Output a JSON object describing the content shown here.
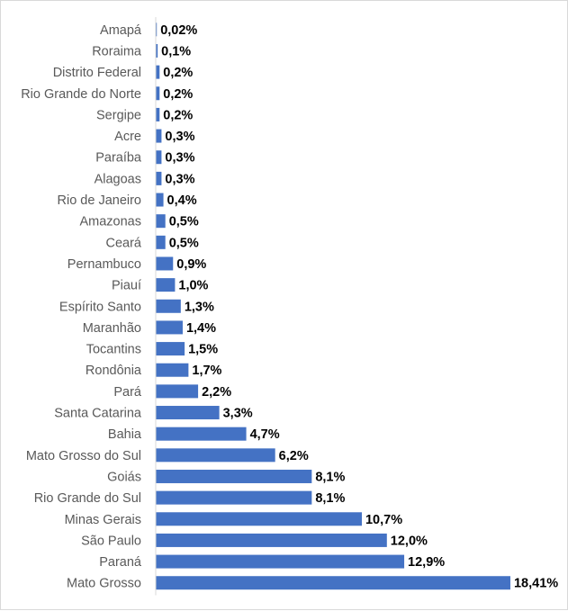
{
  "chart_data": {
    "type": "bar",
    "orientation": "horizontal",
    "title": "",
    "xlabel": "",
    "ylabel": "",
    "grid": false,
    "legend": "none",
    "bar_color": "#4472c4",
    "xlim": [
      0,
      20
    ],
    "categories": [
      "Amapá",
      "Roraima",
      "Distrito Federal",
      "Rio Grande do Norte",
      "Sergipe",
      "Acre",
      "Paraíba",
      "Alagoas",
      "Rio de Janeiro",
      "Amazonas",
      "Ceará",
      "Pernambuco",
      "Piauí",
      "Espírito Santo",
      "Maranhão",
      "Tocantins",
      "Rondônia",
      "Pará",
      "Santa Catarina",
      "Bahia",
      "Mato Grosso do Sul",
      "Goiás",
      "Rio Grande do Sul",
      "Minas Gerais",
      "São Paulo",
      "Paraná",
      "Mato Grosso"
    ],
    "values": [
      0.02,
      0.1,
      0.2,
      0.2,
      0.2,
      0.3,
      0.3,
      0.3,
      0.4,
      0.5,
      0.5,
      0.9,
      1.0,
      1.3,
      1.4,
      1.5,
      1.7,
      2.2,
      3.3,
      4.7,
      6.2,
      8.1,
      8.1,
      10.7,
      12.0,
      12.9,
      18.41
    ],
    "value_labels": [
      "0,02%",
      "0,1%",
      "0,2%",
      "0,2%",
      "0,2%",
      "0,3%",
      "0,3%",
      "0,3%",
      "0,4%",
      "0,5%",
      "0,5%",
      "0,9%",
      "1,0%",
      "1,3%",
      "1,4%",
      "1,5%",
      "1,7%",
      "2,2%",
      "3,3%",
      "4,7%",
      "6,2%",
      "8,1%",
      "8,1%",
      "10,7%",
      "12,0%",
      "12,9%",
      "18,41%"
    ]
  }
}
